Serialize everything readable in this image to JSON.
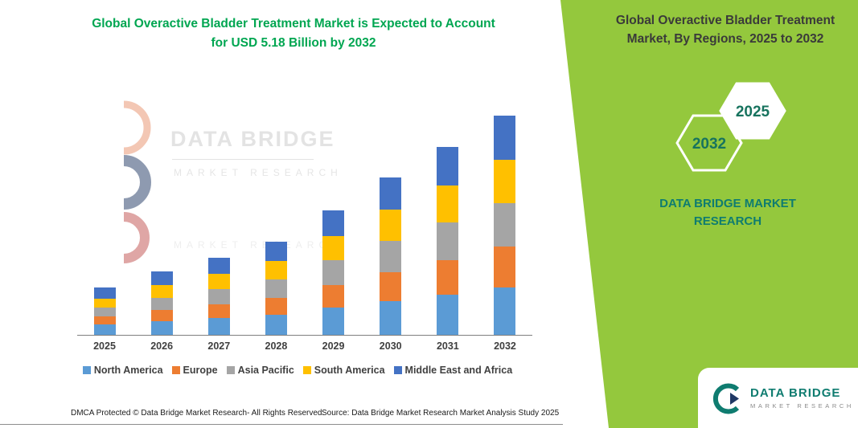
{
  "chart_data": {
    "type": "bar",
    "stacked": true,
    "title": "Global Overactive Bladder Treatment Market is Expected to Account for USD 5.18 Billion by 2032",
    "categories": [
      "2025",
      "2026",
      "2027",
      "2028",
      "2029",
      "2030",
      "2031",
      "2032"
    ],
    "series": [
      {
        "name": "North America",
        "color": "#5B9BD5",
        "values": [
          0.24,
          0.32,
          0.4,
          0.48,
          0.64,
          0.8,
          0.95,
          1.12
        ]
      },
      {
        "name": "Europe",
        "color": "#ED7D31",
        "values": [
          0.2,
          0.27,
          0.33,
          0.4,
          0.54,
          0.68,
          0.82,
          0.96
        ]
      },
      {
        "name": "Asia Pacific",
        "color": "#A5A5A5",
        "values": [
          0.2,
          0.28,
          0.35,
          0.43,
          0.58,
          0.73,
          0.88,
          1.03
        ]
      },
      {
        "name": "South America",
        "color": "#FFC000",
        "values": [
          0.22,
          0.3,
          0.36,
          0.44,
          0.58,
          0.74,
          0.88,
          1.03
        ]
      },
      {
        "name": "Middle East and Africa",
        "color": "#4472C4",
        "values": [
          0.26,
          0.32,
          0.38,
          0.45,
          0.6,
          0.76,
          0.9,
          1.04
        ]
      }
    ],
    "totals": [
      1.12,
      1.49,
      1.82,
      2.2,
      2.94,
      3.71,
      4.43,
      5.18
    ],
    "units": "USD Billion (estimated from bar heights, final value stated as USD 5.18 Billion by 2032)",
    "xlabel": "",
    "ylabel": "",
    "ylim": [
      0,
      5.5
    ],
    "grid": false,
    "legend_position": "bottom"
  },
  "watermark": {
    "line1": "DATA BRIDGE",
    "line2": "MARKET RESEARCH",
    "line3": "MARKET RESEARCH"
  },
  "right_panel": {
    "title": "Global Overactive Bladder Treatment Market, By Regions, 2025 to 2032",
    "hexagon_back_year": "2032",
    "hexagon_front_year": "2025",
    "brand": "DATA BRIDGE MARKET RESEARCH",
    "panel_color": "#94C83D",
    "brand_color": "#0F7C70"
  },
  "footer": {
    "left": "DMCA Protected © Data Bridge Market Research-  All Rights Reserved.",
    "center": "Source: Data Bridge Market Research  Market Analysis Study 2025"
  },
  "logo": {
    "name": "DATA BRIDGE",
    "tagline": "MARKET RESEARCH"
  }
}
